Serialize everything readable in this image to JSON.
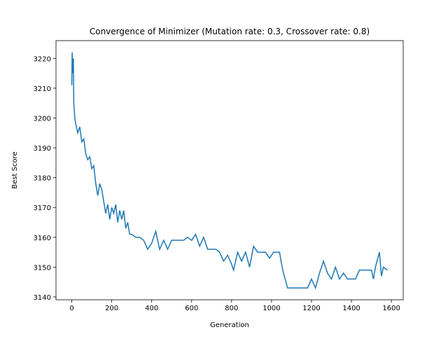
{
  "chart_data": {
    "type": "line",
    "title": "Convergence of Minimizer (Mutation rate: 0.3, Crossover rate: 0.8)",
    "x_label": "Generation",
    "y_label": "Best Score",
    "xlim": [
      -79,
      1659
    ],
    "ylim": [
      3139.05,
      3225.95
    ],
    "xticks": [
      0,
      200,
      400,
      600,
      800,
      1000,
      1200,
      1400,
      1600
    ],
    "yticks": [
      3140,
      3150,
      3160,
      3170,
      3180,
      3190,
      3200,
      3210,
      3220
    ],
    "series": [
      {
        "name": "Best Score",
        "color": "#1f77b4",
        "x": [
          0,
          2,
          5,
          8,
          10,
          15,
          20,
          30,
          40,
          50,
          60,
          70,
          80,
          90,
          100,
          110,
          120,
          130,
          140,
          150,
          160,
          170,
          180,
          190,
          200,
          210,
          220,
          230,
          240,
          250,
          260,
          270,
          280,
          290,
          300,
          320,
          340,
          360,
          380,
          400,
          420,
          440,
          460,
          480,
          500,
          520,
          540,
          560,
          580,
          600,
          620,
          640,
          660,
          680,
          700,
          720,
          740,
          760,
          780,
          800,
          810,
          830,
          850,
          870,
          890,
          910,
          930,
          950,
          970,
          990,
          1010,
          1040,
          1050,
          1060,
          1080,
          1120,
          1180,
          1200,
          1220,
          1240,
          1260,
          1280,
          1300,
          1320,
          1340,
          1360,
          1380,
          1420,
          1440,
          1500,
          1510,
          1520,
          1540,
          1550,
          1560,
          1580
        ],
        "values": [
          3211,
          3222,
          3215,
          3220,
          3205,
          3200,
          3198,
          3195,
          3197,
          3192,
          3193,
          3188,
          3186,
          3187,
          3183,
          3184,
          3178,
          3174,
          3178,
          3176,
          3172,
          3168,
          3171,
          3166,
          3170,
          3168,
          3171,
          3165,
          3169,
          3166,
          3169,
          3163,
          3165,
          3161,
          3161,
          3160,
          3160,
          3159,
          3156,
          3158,
          3162,
          3156,
          3159,
          3156,
          3159,
          3159,
          3159,
          3159,
          3160,
          3159,
          3161,
          3157,
          3160,
          3156,
          3156,
          3156,
          3155,
          3152,
          3154,
          3151,
          3149,
          3155,
          3152,
          3155,
          3150,
          3157,
          3155,
          3155,
          3155,
          3153,
          3155,
          3155,
          3151,
          3148,
          3143,
          3143,
          3143,
          3146,
          3143,
          3148,
          3152,
          3148,
          3146,
          3150,
          3146,
          3148,
          3146,
          3146,
          3149,
          3149,
          3146,
          3150,
          3155,
          3147,
          3150,
          3149
        ]
      }
    ]
  }
}
